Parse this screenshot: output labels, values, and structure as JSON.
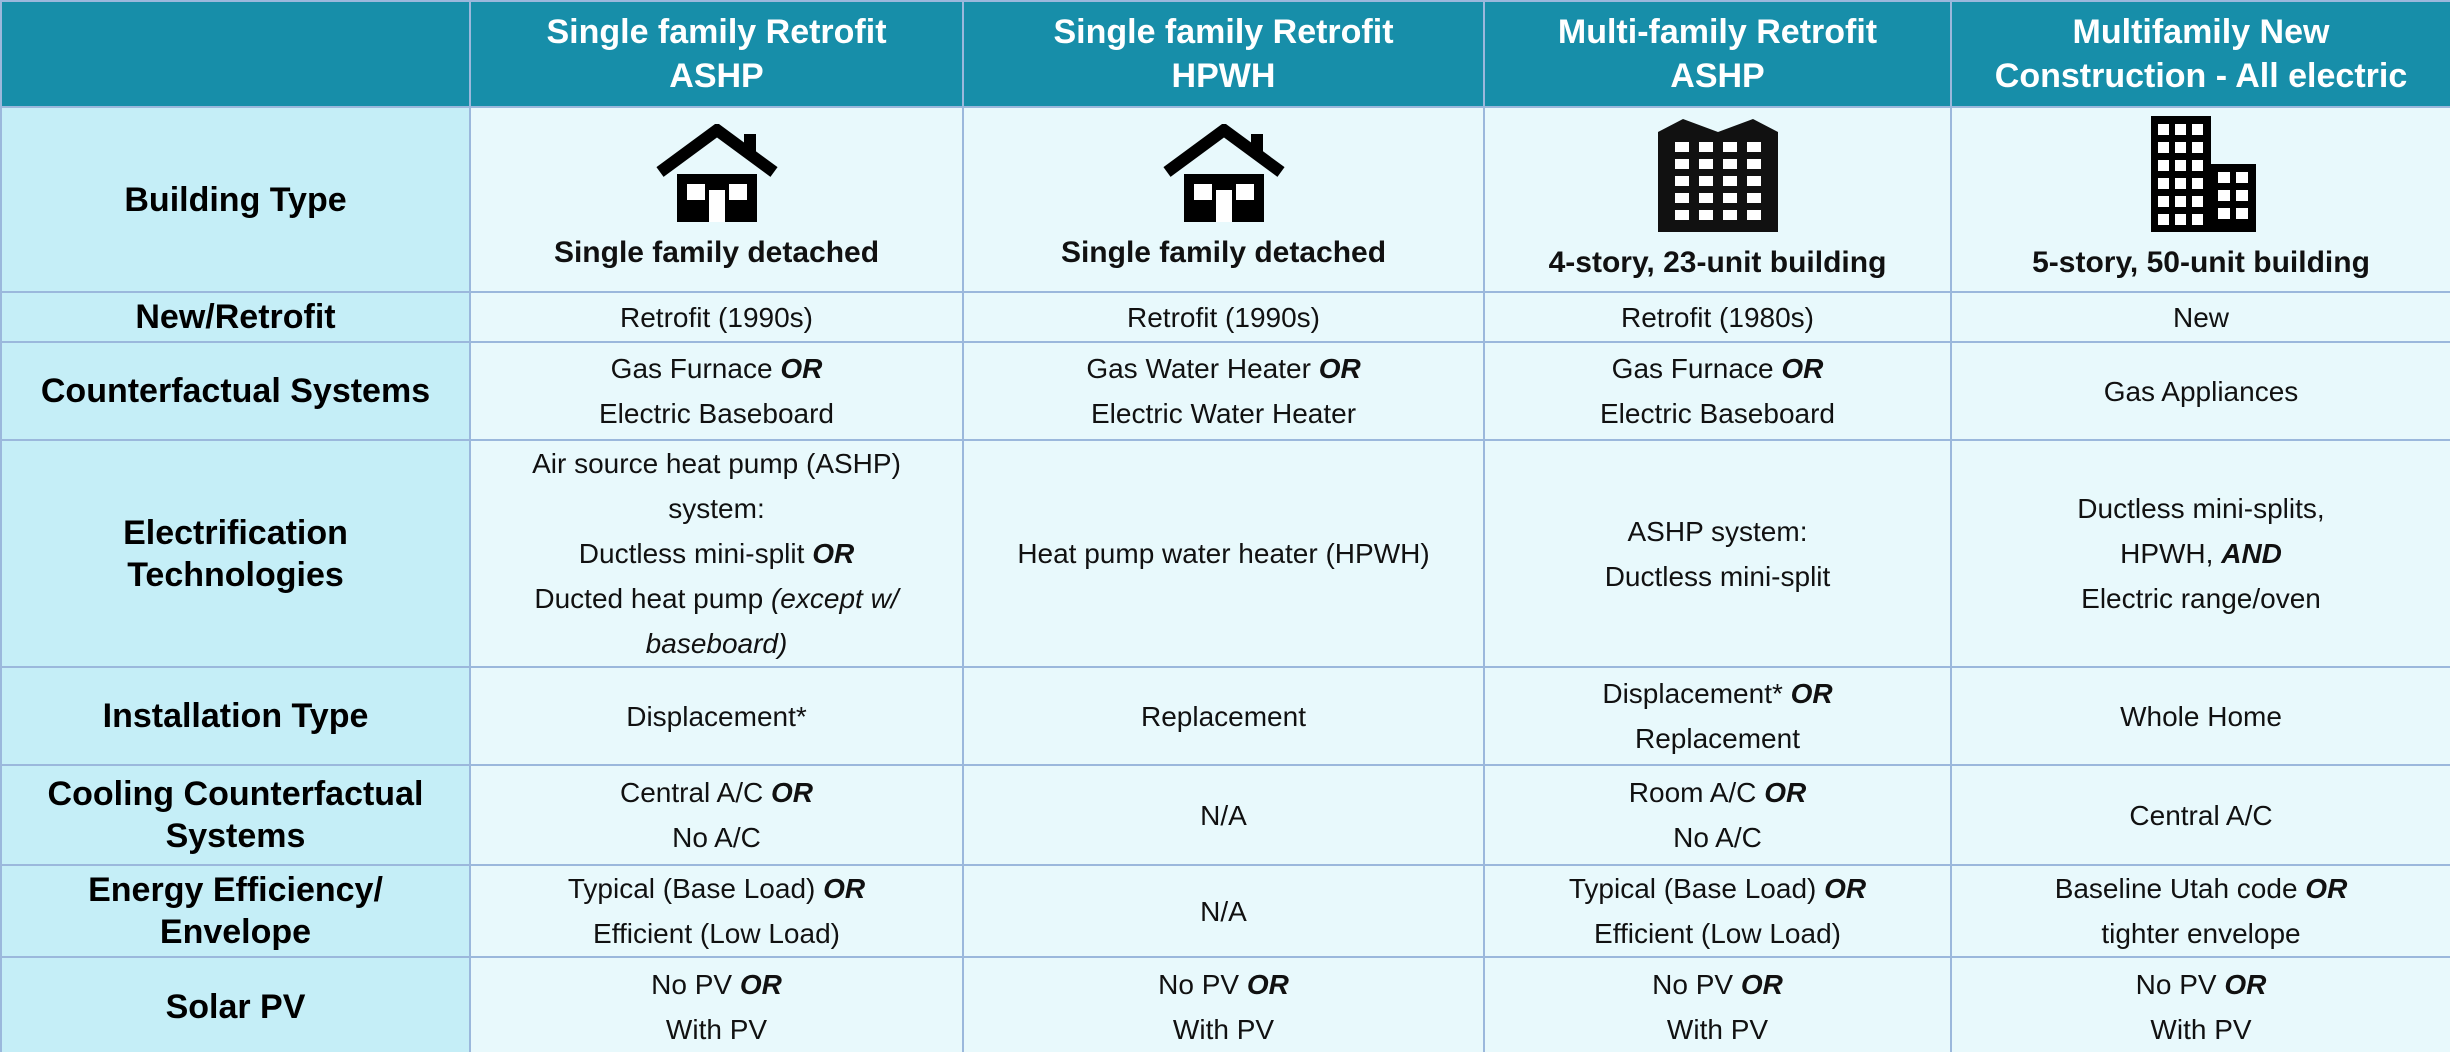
{
  "table": {
    "columns": [
      [
        "Single family Retrofit",
        "ASHP"
      ],
      [
        "Single family Retrofit",
        "HPWH"
      ],
      [
        "Multi-family Retrofit",
        "ASHP"
      ],
      [
        "Multifamily New",
        "Construction - All electric"
      ]
    ],
    "rows": [
      {
        "label": [
          "Building Type"
        ],
        "cells": [
          [
            [
              {
                "text": "Single family detached"
              }
            ]
          ],
          [
            [
              {
                "text": "Single family detached"
              }
            ]
          ],
          [
            [
              {
                "text": "4-story, 23-unit building"
              }
            ]
          ],
          [
            [
              {
                "text": "5-story, 50-unit building"
              }
            ]
          ]
        ]
      },
      {
        "label": [
          "New/Retrofit"
        ],
        "cells": [
          [
            [
              {
                "text": "Retrofit (1990s)"
              }
            ]
          ],
          [
            [
              {
                "text": "Retrofit (1990s)"
              }
            ]
          ],
          [
            [
              {
                "text": "Retrofit (1980s)"
              }
            ]
          ],
          [
            [
              {
                "text": "New"
              }
            ]
          ]
        ]
      },
      {
        "label": [
          "Counterfactual Systems"
        ],
        "cells": [
          [
            [
              {
                "text": "Gas Furnace "
              },
              {
                "text": "OR",
                "style": "bold-italic"
              }
            ],
            [
              {
                "text": "Electric Baseboard"
              }
            ]
          ],
          [
            [
              {
                "text": "Gas Water Heater "
              },
              {
                "text": "OR",
                "style": "bold-italic"
              }
            ],
            [
              {
                "text": "Electric Water Heater"
              }
            ]
          ],
          [
            [
              {
                "text": "Gas Furnace "
              },
              {
                "text": "OR",
                "style": "bold-italic"
              }
            ],
            [
              {
                "text": "Electric Baseboard"
              }
            ]
          ],
          [
            [
              {
                "text": "Gas Appliances"
              }
            ]
          ]
        ]
      },
      {
        "label": [
          "Electrification",
          "Technologies"
        ],
        "cells": [
          [
            [
              {
                "text": "Air source heat pump (ASHP)"
              }
            ],
            [
              {
                "text": "system:"
              }
            ],
            [
              {
                "text": "Ductless mini-split "
              },
              {
                "text": "OR",
                "style": "bold-italic"
              }
            ],
            [
              {
                "text": "Ducted heat pump "
              },
              {
                "text": "(except w/",
                "style": "italic"
              }
            ],
            [
              {
                "text": "baseboard)",
                "style": "italic"
              }
            ]
          ],
          [
            [
              {
                "text": "Heat pump water heater (HPWH)"
              }
            ]
          ],
          [
            [
              {
                "text": "ASHP system:"
              }
            ],
            [
              {
                "text": "Ductless mini-split"
              }
            ]
          ],
          [
            [
              {
                "text": "Ductless mini-splits,"
              }
            ],
            [
              {
                "text": "HPWH, "
              },
              {
                "text": "AND",
                "style": "bold-italic"
              }
            ],
            [
              {
                "text": "Electric range/oven"
              }
            ]
          ]
        ]
      },
      {
        "label": [
          "Installation Type"
        ],
        "cells": [
          [
            [
              {
                "text": "Displacement*"
              }
            ]
          ],
          [
            [
              {
                "text": "Replacement"
              }
            ]
          ],
          [
            [
              {
                "text": "Displacement* "
              },
              {
                "text": "OR",
                "style": "bold-italic"
              }
            ],
            [
              {
                "text": "Replacement"
              }
            ]
          ],
          [
            [
              {
                "text": "Whole Home"
              }
            ]
          ]
        ]
      },
      {
        "label": [
          "Cooling Counterfactual",
          "Systems"
        ],
        "cells": [
          [
            [
              {
                "text": "Central A/C "
              },
              {
                "text": "OR",
                "style": "bold-italic"
              }
            ],
            [
              {
                "text": "No A/C"
              }
            ]
          ],
          [
            [
              {
                "text": "N/A"
              }
            ]
          ],
          [
            [
              {
                "text": "Room A/C "
              },
              {
                "text": "OR",
                "style": "bold-italic"
              }
            ],
            [
              {
                "text": "No A/C"
              }
            ]
          ],
          [
            [
              {
                "text": "Central A/C"
              }
            ]
          ]
        ]
      },
      {
        "label": [
          "Energy Efficiency/",
          "Envelope"
        ],
        "cells": [
          [
            [
              {
                "text": "Typical (Base Load) "
              },
              {
                "text": "OR",
                "style": "bold-italic"
              }
            ],
            [
              {
                "text": "Efficient (Low Load)"
              }
            ]
          ],
          [
            [
              {
                "text": "N/A"
              }
            ]
          ],
          [
            [
              {
                "text": "Typical (Base Load) "
              },
              {
                "text": "OR",
                "style": "bold-italic"
              }
            ],
            [
              {
                "text": "Efficient (Low Load)"
              }
            ]
          ],
          [
            [
              {
                "text": "Baseline Utah code "
              },
              {
                "text": "OR",
                "style": "bold-italic"
              }
            ],
            [
              {
                "text": "tighter envelope"
              }
            ]
          ]
        ]
      },
      {
        "label": [
          "Solar PV"
        ],
        "cells": [
          [
            [
              {
                "text": "No PV "
              },
              {
                "text": "OR",
                "style": "bold-italic"
              }
            ],
            [
              {
                "text": "With PV"
              }
            ]
          ],
          [
            [
              {
                "text": "No PV "
              },
              {
                "text": "OR",
                "style": "bold-italic"
              }
            ],
            [
              {
                "text": "With PV"
              }
            ]
          ],
          [
            [
              {
                "text": "No PV "
              },
              {
                "text": "OR",
                "style": "bold-italic"
              }
            ],
            [
              {
                "text": "With PV"
              }
            ]
          ],
          [
            [
              {
                "text": "No PV "
              },
              {
                "text": "OR",
                "style": "bold-italic"
              }
            ],
            [
              {
                "text": "With PV"
              }
            ]
          ]
        ]
      }
    ]
  }
}
